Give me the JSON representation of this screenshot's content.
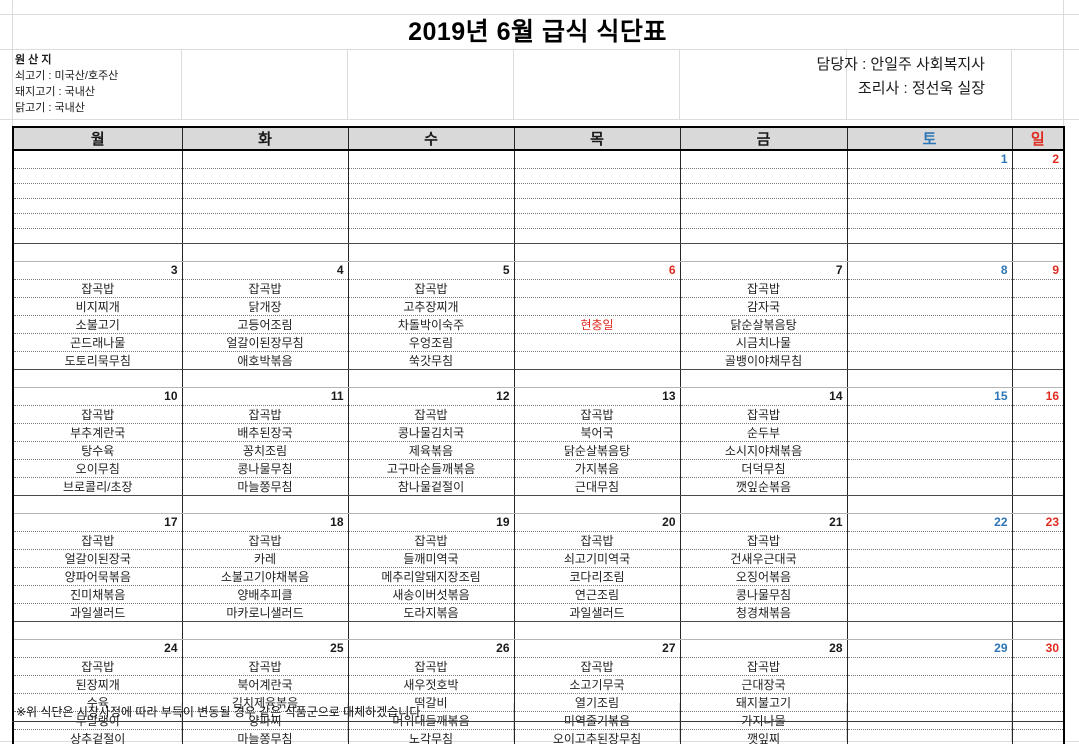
{
  "title": "2019년  6월 급식 식단표",
  "origin": {
    "heading": "원 산 지",
    "lines": [
      "쇠고기 : 미국산/호주산",
      "돼지고기 : 국내산",
      "닭고기 : 국내산"
    ]
  },
  "staff": {
    "line1": "담당자 :  안일주  사회복지사",
    "line2": "조리사 :  정선욱  실장"
  },
  "colors": {
    "saturday_blue": "#2e75b6",
    "sunday_red": "#e02b20",
    "header_bg": "#d9d9d9"
  },
  "calendar": {
    "day_headers": [
      {
        "label": "월",
        "color": "weekday"
      },
      {
        "label": "화",
        "color": "weekday"
      },
      {
        "label": "수",
        "color": "weekday"
      },
      {
        "label": "목",
        "color": "weekday"
      },
      {
        "label": "금",
        "color": "weekday"
      },
      {
        "label": "토",
        "color": "sat"
      },
      {
        "label": "일",
        "color": "sun"
      }
    ],
    "weeks": [
      {
        "days": [
          {
            "date": "",
            "menu": []
          },
          {
            "date": "",
            "menu": []
          },
          {
            "date": "",
            "menu": []
          },
          {
            "date": "",
            "menu": []
          },
          {
            "date": "",
            "menu": []
          },
          {
            "date": "1",
            "date_color": "sat",
            "menu": []
          },
          {
            "date": "2",
            "date_color": "sun",
            "menu": []
          }
        ]
      },
      {
        "days": [
          {
            "date": "3",
            "menu": [
              "잡곡밥",
              "비지찌개",
              "소불고기",
              "곤드래나물",
              "도토리묵무침"
            ]
          },
          {
            "date": "4",
            "menu": [
              "잡곡밥",
              "닭개장",
              "고등어조림",
              "얼갈이된장무침",
              "애호박볶음"
            ]
          },
          {
            "date": "5",
            "menu": [
              "잡곡밥",
              "고추장찌개",
              "차돌박이숙주",
              "우엉조림",
              "쑥갓무침"
            ]
          },
          {
            "date": "6",
            "date_color": "holiday",
            "menu_color": "holiday",
            "menu": [
              "",
              "",
              "현충일",
              "",
              ""
            ]
          },
          {
            "date": "7",
            "menu": [
              "잡곡밥",
              "감자국",
              "닭순살볶음탕",
              "시금치나물",
              "골뱅이야채무침"
            ]
          },
          {
            "date": "8",
            "date_color": "sat",
            "menu": []
          },
          {
            "date": "9",
            "date_color": "sun",
            "menu": []
          }
        ]
      },
      {
        "days": [
          {
            "date": "10",
            "menu": [
              "잡곡밥",
              "부추계란국",
              "탕수육",
              "오이무침",
              "브로콜리/초장"
            ]
          },
          {
            "date": "11",
            "menu": [
              "잡곡밥",
              "배추된장국",
              "꽁치조림",
              "콩나물무침",
              "마늘쫑무침"
            ]
          },
          {
            "date": "12",
            "menu": [
              "잡곡밥",
              "콩나물김치국",
              "제육볶음",
              "고구마순들깨볶음",
              "참나물겉절이"
            ]
          },
          {
            "date": "13",
            "menu": [
              "잡곡밥",
              "북어국",
              "닭순살볶음탕",
              "가지볶음",
              "근대무침"
            ]
          },
          {
            "date": "14",
            "menu": [
              "잡곡밥",
              "순두부",
              "소시지야채볶음",
              "더덕무침",
              "깻잎순볶음"
            ]
          },
          {
            "date": "15",
            "date_color": "sat",
            "menu": []
          },
          {
            "date": "16",
            "date_color": "sun",
            "menu": []
          }
        ]
      },
      {
        "days": [
          {
            "date": "17",
            "menu": [
              "잡곡밥",
              "얼갈이된장국",
              "양파어묵볶음",
              "진미채볶음",
              "과일샐러드"
            ]
          },
          {
            "date": "18",
            "menu": [
              "잡곡밥",
              "카레",
              "소불고기야채볶음",
              "양배추피클",
              "마카로니샐러드"
            ]
          },
          {
            "date": "19",
            "menu": [
              "잡곡밥",
              "들깨미역국",
              "메추리알돼지장조림",
              "새송이버섯볶음",
              "도라지볶음"
            ]
          },
          {
            "date": "20",
            "menu": [
              "잡곡밥",
              "쇠고기미역국",
              "코다리조림",
              "연근조림",
              "과일샐러드"
            ]
          },
          {
            "date": "21",
            "menu": [
              "잡곡밥",
              "건새우근대국",
              "오징어볶음",
              "콩나물무침",
              "청경채볶음"
            ]
          },
          {
            "date": "22",
            "date_color": "sat",
            "menu": []
          },
          {
            "date": "23",
            "date_color": "sun",
            "menu": []
          }
        ]
      },
      {
        "days": [
          {
            "date": "24",
            "menu": [
              "잡곡밥",
              "된장찌개",
              "수육",
              "무말랭이",
              "상추겉절이"
            ]
          },
          {
            "date": "25",
            "menu": [
              "잡곡밥",
              "북어계란국",
              "김치제육볶음",
              "양파찌",
              "마늘쫑무침"
            ]
          },
          {
            "date": "26",
            "menu": [
              "잡곡밥",
              "새우젓호박",
              "떡갈비",
              "머위대들깨볶음",
              "노각무침"
            ]
          },
          {
            "date": "27",
            "menu": [
              "잡곡밥",
              "소고기무국",
              "열기조림",
              "미역줄기볶음",
              "오이고추된장무침"
            ]
          },
          {
            "date": "28",
            "menu": [
              "잡곡밥",
              "근대장국",
              "돼지불고기",
              "가지나물",
              "깻잎찌"
            ]
          },
          {
            "date": "29",
            "date_color": "sat",
            "menu": []
          },
          {
            "date": "30",
            "date_color": "sun",
            "menu": []
          }
        ]
      }
    ]
  },
  "footer_note": "※위 식단은 시장사정에 따라 부득이 변동될 경우 같은 식품군으로 대체하겠습니다."
}
